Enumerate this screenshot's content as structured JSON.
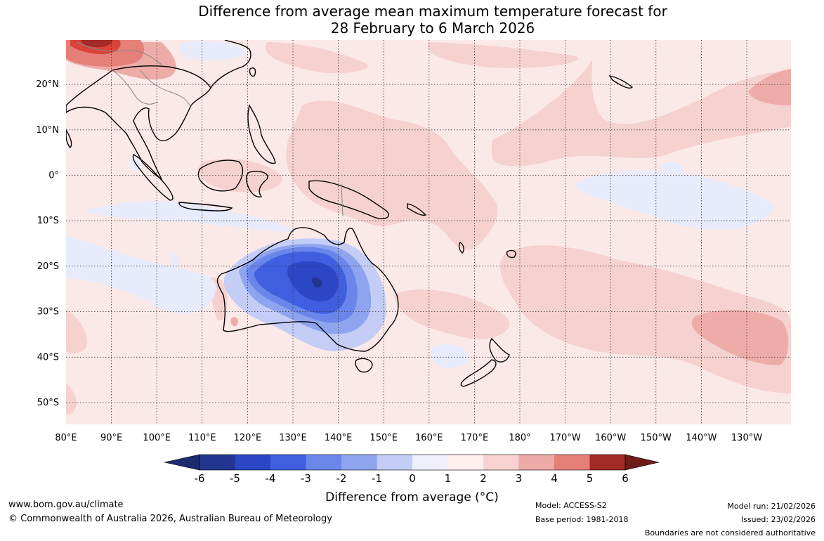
{
  "title_line1": "Difference from average mean maximum temperature forecast for",
  "title_line2": "28 February to 6 March 2026",
  "lat_labels": [
    "20°N",
    "10°N",
    "0°",
    "10°S",
    "20°S",
    "30°S",
    "40°S",
    "50°S"
  ],
  "lon_labels": [
    "80°E",
    "90°E",
    "100°E",
    "110°E",
    "120°E",
    "130°E",
    "140°E",
    "150°E",
    "160°E",
    "170°E",
    "180°",
    "170°W",
    "160°W",
    "150°W",
    "140°W",
    "130°W"
  ],
  "colorbar": {
    "title": "Difference from average (°C)",
    "ticks": [
      "-6",
      "-5",
      "-4",
      "-3",
      "-2",
      "-1",
      "0",
      "1",
      "2",
      "3",
      "4",
      "5",
      "6"
    ],
    "colors": [
      "#23368f",
      "#2b47c6",
      "#3f5fe0",
      "#6a86ea",
      "#8ea4ee",
      "#c4cdf6",
      "#eef1fc",
      "#fcefee",
      "#f7d2d0",
      "#eeaaa6",
      "#e58079",
      "#d8443a",
      "#a32a25"
    ],
    "under_color": "#1c2a6e",
    "over_color": "#6e1c18"
  },
  "footer": {
    "website": "www.bom.gov.au/climate",
    "copyright": "© Commonwealth of Australia 2026, Australian Bureau of Meteorology",
    "model": "Model: ACCESS-S2",
    "base_period": "Base period: 1981-2018",
    "model_run": "Model run: 21/02/2026",
    "issued": "Issued: 23/02/2026",
    "disclaimer": "Boundaries are not considered authoritative"
  }
}
